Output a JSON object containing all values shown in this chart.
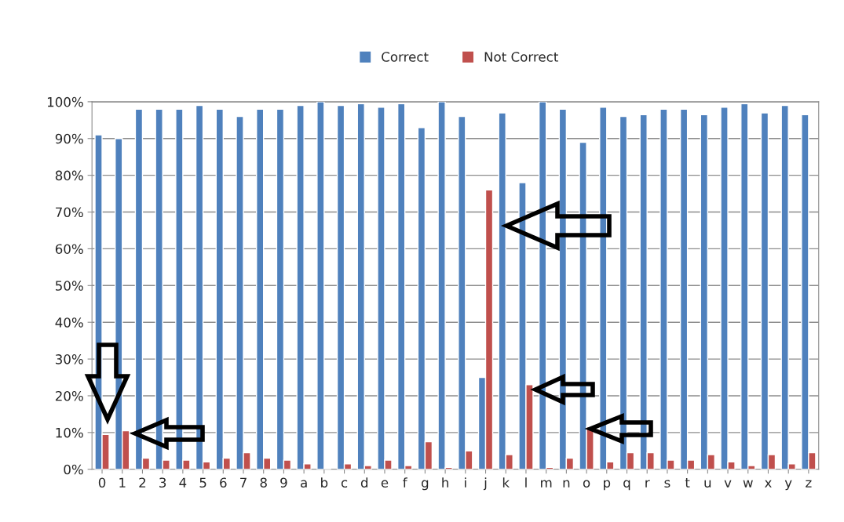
{
  "chart_data": {
    "type": "bar",
    "categories": [
      "0",
      "1",
      "2",
      "3",
      "4",
      "5",
      "6",
      "7",
      "8",
      "9",
      "a",
      "b",
      "c",
      "d",
      "e",
      "f",
      "g",
      "h",
      "i",
      "j",
      "k",
      "l",
      "m",
      "n",
      "o",
      "p",
      "q",
      "r",
      "s",
      "t",
      "u",
      "v",
      "w",
      "x",
      "y",
      "z"
    ],
    "series": [
      {
        "name": "Correct",
        "color": "#4f81bd",
        "values": [
          91,
          90,
          98,
          98,
          98,
          99,
          98,
          96,
          98,
          98,
          99,
          100,
          99,
          99.5,
          98.5,
          99.5,
          93,
          100,
          96,
          25,
          97,
          78,
          100,
          98,
          89,
          98.5,
          96,
          96.5,
          98,
          98,
          96.5,
          98.5,
          99.5,
          97,
          99,
          96.5
        ]
      },
      {
        "name": "Not Correct",
        "color": "#c0504d",
        "values": [
          9.5,
          10.5,
          3,
          2.5,
          2.5,
          2,
          3,
          4.5,
          3,
          2.5,
          1.5,
          null,
          1.5,
          1,
          2.5,
          1,
          7.5,
          0.5,
          5,
          76,
          4,
          23,
          0.5,
          3,
          11.5,
          2,
          4.5,
          4.5,
          2.5,
          2.5,
          4,
          2,
          1,
          4,
          1.5,
          4.5
        ]
      }
    ],
    "ylim": [
      0,
      100
    ],
    "yticks": [
      {
        "value": 0,
        "label": "0%"
      },
      {
        "value": 10,
        "label": "10%"
      },
      {
        "value": 20,
        "label": "20%"
      },
      {
        "value": 30,
        "label": "30%"
      },
      {
        "value": 40,
        "label": "40%"
      },
      {
        "value": 50,
        "label": "50%"
      },
      {
        "value": 60,
        "label": "60%"
      },
      {
        "value": 70,
        "label": "70%"
      },
      {
        "value": 80,
        "label": "80%"
      },
      {
        "value": 90,
        "label": "90%"
      },
      {
        "value": 100,
        "label": "100%"
      }
    ],
    "grid": "y",
    "legend": "top"
  }
}
